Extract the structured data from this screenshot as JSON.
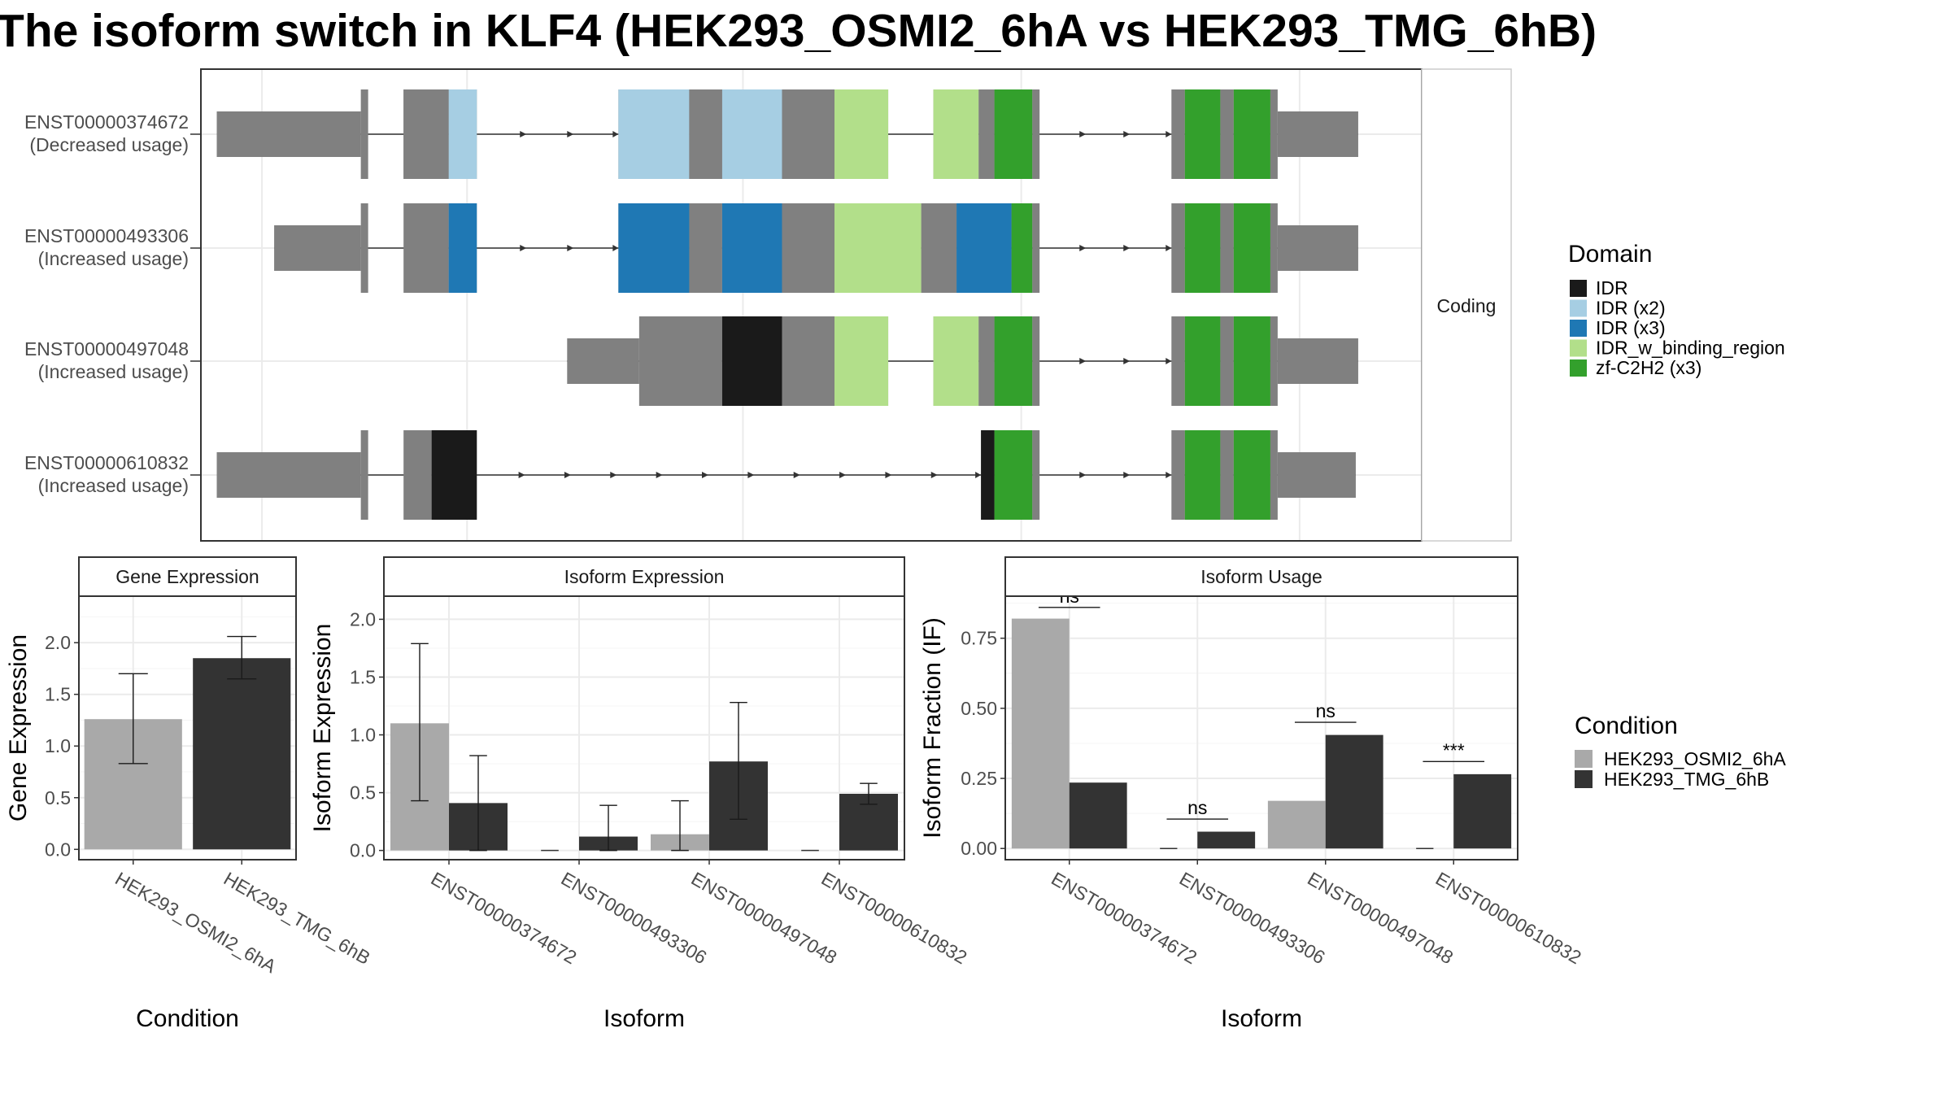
{
  "title": "The isoform switch in KLF4 (HEK293_OSMI2_6hA vs HEK293_TMG_6hB)",
  "colors": {
    "exon": "#808080",
    "cond1": "#a9a9a9",
    "cond2": "#333333",
    "IDR": "#1a1a1a",
    "IDR (x2)": "#a6cee3",
    "IDR (x3)": "#1f78b4",
    "IDR_w_binding_region": "#b2df8a",
    "zf-C2H2 (x3)": "#33a02c"
  },
  "chart_data": [
    {
      "type": "gene-structure",
      "facet_label": "Coding",
      "genome_range": [
        0,
        100
      ],
      "legend": {
        "title": "Domain",
        "entries": [
          "IDR",
          "IDR (x2)",
          "IDR (x3)",
          "IDR_w_binding_region",
          "zf-C2H2 (x3)"
        ]
      },
      "isoforms": [
        {
          "id": "ENST00000374672",
          "usage": "(Decreased usage)",
          "tx": [
            1.3,
            94.8
          ],
          "exons": [
            [
              1.3,
              13.1,
              "utr"
            ],
            [
              13.1,
              13.7,
              "cds"
            ],
            [
              16.6,
              20.3,
              "cds"
            ],
            [
              20.3,
              22.6,
              "cds"
            ],
            [
              34.2,
              40.0,
              "cds"
            ],
            [
              40.0,
              42.7,
              "cds"
            ],
            [
              42.7,
              47.6,
              "cds"
            ],
            [
              47.6,
              51.9,
              "cds"
            ],
            [
              51.9,
              56.3,
              "cds"
            ],
            [
              60.0,
              63.7,
              "cds"
            ],
            [
              63.7,
              65.0,
              "cds"
            ],
            [
              65.0,
              68.1,
              "cds"
            ],
            [
              68.1,
              68.7,
              "cds"
            ],
            [
              79.5,
              80.6,
              "cds"
            ],
            [
              80.6,
              83.5,
              "cds"
            ],
            [
              83.5,
              84.6,
              "cds"
            ],
            [
              84.6,
              87.6,
              "cds"
            ],
            [
              87.6,
              88.2,
              "cds"
            ],
            [
              88.2,
              94.8,
              "utr"
            ]
          ],
          "domains": [
            [
              16.6,
              20.3,
              "cds-gray"
            ],
            [
              20.3,
              22.6,
              "IDR (x2)"
            ],
            [
              34.2,
              40.0,
              "IDR (x2)"
            ],
            [
              40.0,
              42.7,
              "cds-gray"
            ],
            [
              42.7,
              47.6,
              "IDR (x2)"
            ],
            [
              51.9,
              56.3,
              "IDR_w_binding_region"
            ],
            [
              60.0,
              63.7,
              "IDR_w_binding_region"
            ],
            [
              65.0,
              68.1,
              "zf-C2H2 (x3)"
            ],
            [
              80.6,
              83.5,
              "zf-C2H2 (x3)"
            ],
            [
              84.6,
              87.6,
              "zf-C2H2 (x3)"
            ]
          ],
          "arrow_introns": [
            [
              22.6,
              34.2
            ],
            [
              68.7,
              79.5
            ]
          ]
        },
        {
          "id": "ENST00000493306",
          "usage": "(Increased usage)",
          "tx": [
            6.0,
            94.8
          ],
          "exons": [
            [
              6.0,
              13.1,
              "utr"
            ],
            [
              13.1,
              13.7,
              "cds"
            ],
            [
              16.6,
              20.3,
              "cds"
            ],
            [
              20.3,
              22.6,
              "cds"
            ],
            [
              34.2,
              40.0,
              "cds"
            ],
            [
              40.0,
              42.7,
              "cds"
            ],
            [
              42.7,
              47.6,
              "cds"
            ],
            [
              47.6,
              51.9,
              "cds"
            ],
            [
              51.9,
              59.0,
              "cds"
            ],
            [
              59.0,
              61.9,
              "cds"
            ],
            [
              61.9,
              66.4,
              "cds"
            ],
            [
              66.4,
              68.1,
              "cds"
            ],
            [
              68.1,
              68.7,
              "cds"
            ],
            [
              79.5,
              80.6,
              "cds"
            ],
            [
              80.6,
              83.5,
              "cds"
            ],
            [
              83.5,
              84.6,
              "cds"
            ],
            [
              84.6,
              87.6,
              "cds"
            ],
            [
              87.6,
              88.2,
              "cds"
            ],
            [
              88.2,
              94.8,
              "utr"
            ]
          ],
          "domains": [
            [
              20.3,
              22.6,
              "IDR (x3)"
            ],
            [
              34.2,
              40.0,
              "IDR (x3)"
            ],
            [
              42.7,
              47.6,
              "IDR (x3)"
            ],
            [
              51.9,
              59.0,
              "IDR_w_binding_region"
            ],
            [
              61.9,
              66.4,
              "IDR (x3)"
            ],
            [
              66.4,
              68.1,
              "zf-C2H2 (x3)"
            ],
            [
              80.6,
              83.5,
              "zf-C2H2 (x3)"
            ],
            [
              84.6,
              87.6,
              "zf-C2H2 (x3)"
            ]
          ],
          "arrow_introns": [
            [
              22.6,
              34.2
            ],
            [
              68.7,
              79.5
            ]
          ]
        },
        {
          "id": "ENST00000497048",
          "usage": "(Increased usage)",
          "tx": [
            30.0,
            94.8
          ],
          "exons": [
            [
              30.0,
              35.9,
              "utr"
            ],
            [
              35.9,
              42.7,
              "cds"
            ],
            [
              42.7,
              47.6,
              "cds"
            ],
            [
              47.6,
              51.9,
              "cds"
            ],
            [
              51.9,
              56.3,
              "cds"
            ],
            [
              60.0,
              63.7,
              "cds"
            ],
            [
              63.7,
              65.0,
              "cds"
            ],
            [
              65.0,
              68.1,
              "cds"
            ],
            [
              68.1,
              68.7,
              "cds"
            ],
            [
              79.5,
              80.6,
              "cds"
            ],
            [
              80.6,
              83.5,
              "cds"
            ],
            [
              83.5,
              84.6,
              "cds"
            ],
            [
              84.6,
              87.6,
              "cds"
            ],
            [
              87.6,
              88.2,
              "cds"
            ],
            [
              88.2,
              94.8,
              "utr"
            ]
          ],
          "domains": [
            [
              42.7,
              47.6,
              "IDR"
            ],
            [
              51.9,
              56.3,
              "IDR_w_binding_region"
            ],
            [
              60.0,
              63.7,
              "IDR_w_binding_region"
            ],
            [
              65.0,
              68.1,
              "zf-C2H2 (x3)"
            ],
            [
              80.6,
              83.5,
              "zf-C2H2 (x3)"
            ],
            [
              84.6,
              87.6,
              "zf-C2H2 (x3)"
            ]
          ],
          "arrow_introns": [
            [
              68.7,
              79.5
            ]
          ]
        },
        {
          "id": "ENST00000610832",
          "usage": "(Increased usage)",
          "tx": [
            1.3,
            94.6
          ],
          "exons": [
            [
              1.3,
              13.1,
              "utr"
            ],
            [
              13.1,
              13.7,
              "cds"
            ],
            [
              16.6,
              18.9,
              "cds"
            ],
            [
              18.9,
              22.6,
              "cds"
            ],
            [
              63.9,
              65.0,
              "cds"
            ],
            [
              65.0,
              68.1,
              "cds"
            ],
            [
              68.1,
              68.7,
              "cds"
            ],
            [
              79.5,
              80.6,
              "cds"
            ],
            [
              80.6,
              83.5,
              "cds"
            ],
            [
              83.5,
              84.6,
              "cds"
            ],
            [
              84.6,
              87.6,
              "cds"
            ],
            [
              87.6,
              88.2,
              "cds"
            ],
            [
              88.2,
              94.6,
              "utr"
            ]
          ],
          "domains": [
            [
              18.9,
              22.6,
              "IDR"
            ],
            [
              63.9,
              65.0,
              "IDR"
            ],
            [
              65.0,
              68.1,
              "zf-C2H2 (x3)"
            ],
            [
              80.6,
              83.5,
              "zf-C2H2 (x3)"
            ],
            [
              84.6,
              87.6,
              "zf-C2H2 (x3)"
            ]
          ],
          "arrow_introns": [
            [
              22.6,
              63.9
            ],
            [
              68.7,
              79.5
            ]
          ]
        }
      ]
    },
    {
      "type": "bar",
      "title": "Gene Expression",
      "xlabel": "Condition",
      "ylabel": "Gene Expression",
      "ylim": [
        -0.1,
        2.45
      ],
      "yticks": [
        "0.0",
        "0.5",
        "1.0",
        "1.5",
        "2.0"
      ],
      "categories": [
        "HEK293_OSMI2_6hA",
        "HEK293_TMG_6hB"
      ],
      "values": [
        1.26,
        1.85
      ],
      "err_low": [
        0.83,
        1.65
      ],
      "err_high": [
        1.7,
        2.06
      ]
    },
    {
      "type": "bar",
      "title": "Isoform Expression",
      "xlabel": "Isoform",
      "ylabel": "Isoform Expression",
      "ylim": [
        -0.08,
        2.2
      ],
      "yticks": [
        "0.0",
        "0.5",
        "1.0",
        "1.5",
        "2.0"
      ],
      "categories": [
        "ENST00000374672",
        "ENST00000493306",
        "ENST00000497048",
        "ENST00000610832"
      ],
      "series": [
        {
          "name": "HEK293_OSMI2_6hA",
          "values": [
            1.1,
            0.0,
            0.14,
            0.0
          ],
          "err_low": [
            0.43,
            0.0,
            0.0,
            0.0
          ],
          "err_high": [
            1.79,
            0.0,
            0.43,
            0.0
          ]
        },
        {
          "name": "HEK293_TMG_6hB",
          "values": [
            0.41,
            0.12,
            0.77,
            0.49
          ],
          "err_low": [
            0.0,
            0.0,
            0.27,
            0.4
          ],
          "err_high": [
            0.82,
            0.39,
            1.28,
            0.58
          ]
        }
      ]
    },
    {
      "type": "bar",
      "title": "Isoform Usage",
      "xlabel": "Isoform",
      "ylabel": "Isoform Fraction (IF)",
      "ylim": [
        -0.04,
        0.9
      ],
      "yticks": [
        "0.00",
        "0.25",
        "0.50",
        "0.75"
      ],
      "categories": [
        "ENST00000374672",
        "ENST00000493306",
        "ENST00000497048",
        "ENST00000610832"
      ],
      "series": [
        {
          "name": "HEK293_OSMI2_6hA",
          "values": [
            0.82,
            0.0,
            0.17,
            0.0
          ]
        },
        {
          "name": "HEK293_TMG_6hB",
          "values": [
            0.235,
            0.06,
            0.405,
            0.265
          ]
        }
      ],
      "significance": [
        {
          "label": "ns",
          "y": 0.86
        },
        {
          "label": "ns",
          "y": 0.105
        },
        {
          "label": "ns",
          "y": 0.45
        },
        {
          "label": "***",
          "y": 0.31
        }
      ]
    }
  ],
  "condition_legend": {
    "title": "Condition",
    "entries": [
      "HEK293_OSMI2_6hA",
      "HEK293_TMG_6hB"
    ]
  }
}
